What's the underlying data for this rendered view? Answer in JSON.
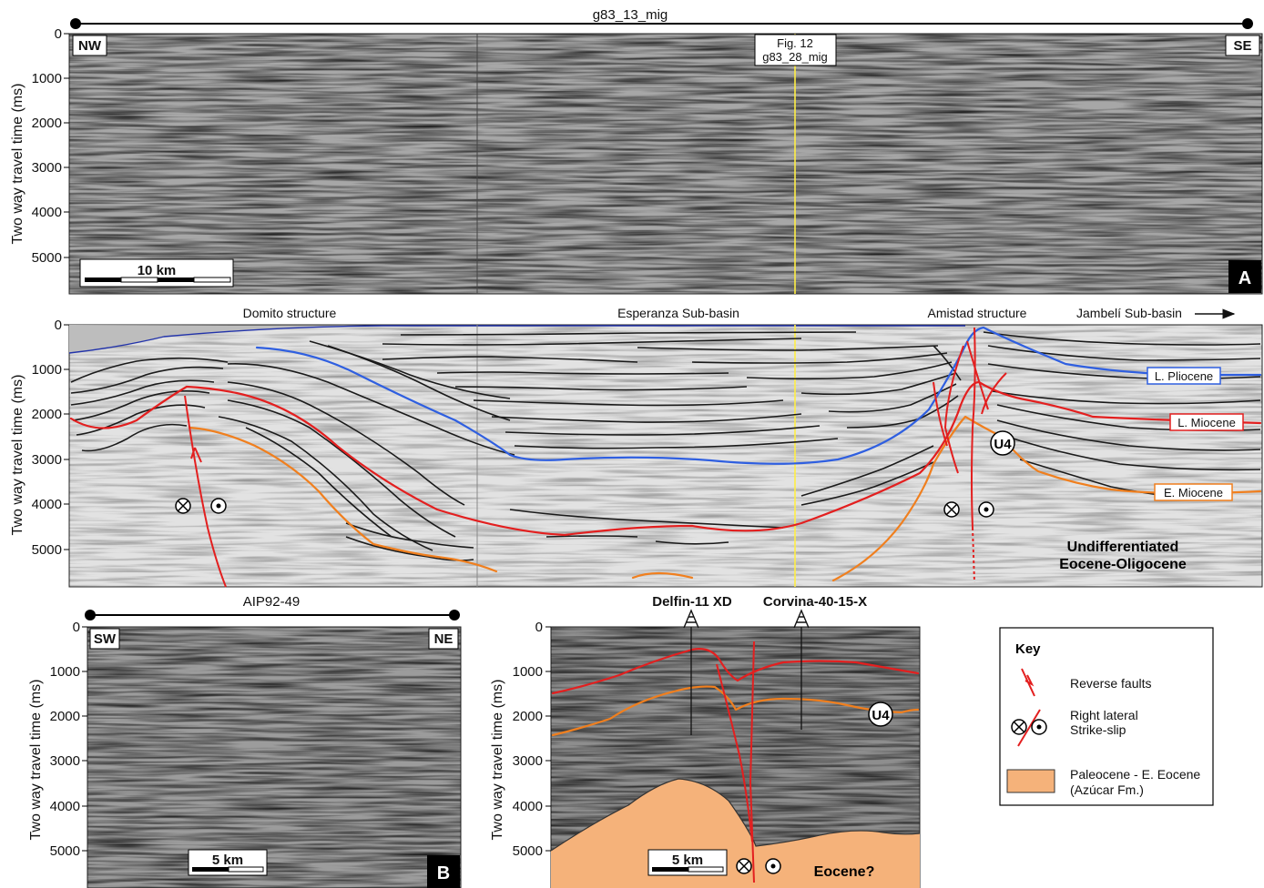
{
  "colors": {
    "pliocene": "#2f5fe0",
    "miocene_l": "#e31f1f",
    "miocene_e": "#f07f1e",
    "fault": "#e31f1f",
    "paleocene_fill": "#f5b27a",
    "well_line": "#ffe94a",
    "seabed_blue": "#2233aa"
  },
  "icons": [
    "reverse-fault-arrow-icon",
    "strike-slip-into-icon",
    "strike-slip-outof-icon",
    "well-derrick-icon",
    "direction-arrow-icon"
  ],
  "panel_a": {
    "line_name": "g83_13_mig",
    "left_dir": "NW",
    "right_dir": "SE",
    "crossing_line": "Fig. 12",
    "crossing_line2": "g83_28_mig",
    "scale_label": "10 km",
    "panel_letter": "A",
    "y_label": "Two way travel time (ms)",
    "y_ticks": [
      "0",
      "1000",
      "2000",
      "3000",
      "4000",
      "5000"
    ]
  },
  "panel_interp": {
    "y_label": "Two way travel time (ms)",
    "y_ticks": [
      "0",
      "1000",
      "2000",
      "3000",
      "4000",
      "5000"
    ],
    "structure_1": "Domito structure",
    "structure_2": "Esperanza Sub-basin",
    "structure_3": "Amistad structure",
    "structure_4": "Jambelí Sub-basin",
    "horizon_1": "L. Pliocene",
    "horizon_2": "L. Miocene",
    "horizon_3": "E. Miocene",
    "unit_u4": "U4",
    "undiff_1": "Undifferentiated",
    "undiff_2": "Eocene-Oligocene"
  },
  "panel_b": {
    "line_name": "AIP92-49",
    "left_dir": "SW",
    "right_dir": "NE",
    "scale_label": "5 km",
    "panel_letter": "B",
    "y_label": "Two way travel time (ms)",
    "y_ticks": [
      "0",
      "1000",
      "2000",
      "3000",
      "4000",
      "5000"
    ]
  },
  "panel_b_interp": {
    "well_1": "Delfin-11 XD",
    "well_2": "Corvina-40-15-X",
    "y_label": "Two way travel time (ms)",
    "y_ticks": [
      "0",
      "1000",
      "2000",
      "3000",
      "4000",
      "5000"
    ],
    "unit_u4": "U4",
    "eocene_label": "Eocene?",
    "scale_label": "5 km"
  },
  "key": {
    "title": "Key",
    "item_1": "Reverse faults",
    "item_2a": "Right lateral",
    "item_2b": "Strike-slip",
    "item_3a": "Paleocene - E. Eocene",
    "item_3b": "(Azúcar Fm.)"
  }
}
